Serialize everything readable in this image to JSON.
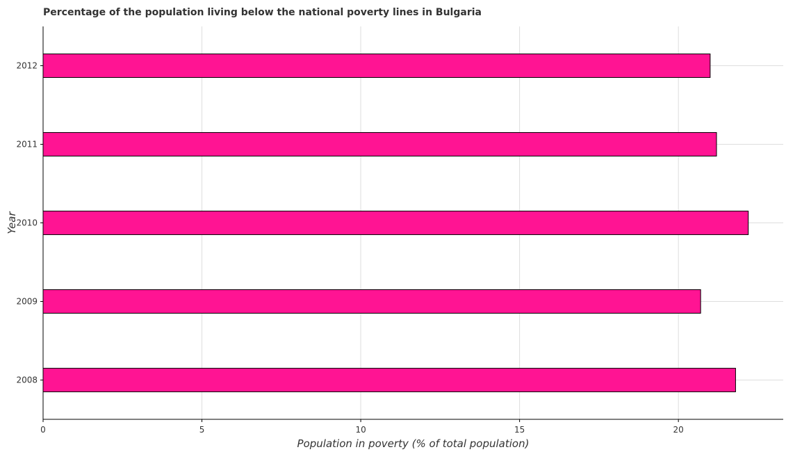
{
  "chart_data": {
    "type": "bar",
    "orientation": "horizontal",
    "title": "Percentage of the population living below the national poverty lines in Bulgaria",
    "xlabel": "Population in poverty (% of total population)",
    "ylabel": "Year",
    "categories": [
      "2008",
      "2009",
      "2010",
      "2011",
      "2012"
    ],
    "values": [
      21.8,
      20.7,
      22.2,
      21.2,
      21.0
    ],
    "xlim": [
      0,
      23.3
    ],
    "xticks": [
      0,
      5,
      10,
      15,
      20
    ],
    "xtick_labels": [
      "0",
      "5",
      "10",
      "15",
      "20"
    ],
    "grid": true,
    "bar_color": "#ff1493",
    "bar_edge_color": "#000000",
    "grid_color": "#dddddd"
  }
}
